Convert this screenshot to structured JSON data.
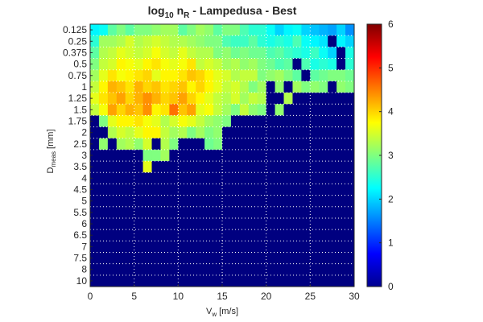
{
  "chart_data": {
    "type": "heatmap",
    "title": {
      "main": "log",
      "sub": "10",
      "mid": " n",
      "sub2": "R",
      "tail": " - Lampedusa - Best"
    },
    "xlabel": {
      "main": "V",
      "sub": "w",
      "tail": " [m/s]"
    },
    "ylabel": {
      "main": "D",
      "sub": "meas",
      "tail": " [mm]"
    },
    "x_ticks": [
      0,
      5,
      10,
      15,
      20,
      25,
      30
    ],
    "xlim": [
      0,
      30
    ],
    "y_tick_labels": [
      "0.125",
      "0.25",
      "0.375",
      "0.5",
      "0.75",
      "1",
      "1.25",
      "1.5",
      "1.75",
      "2",
      "2.5",
      "3",
      "3.5",
      "4",
      "4.5",
      "5",
      "5.5",
      "6",
      "6.5",
      "7",
      "7.5",
      "8",
      "10"
    ],
    "colorbar": {
      "min": 0,
      "max": 6,
      "ticks": [
        0,
        1,
        2,
        3,
        4,
        5,
        6
      ],
      "colormap": "jet"
    },
    "grid": true,
    "x_bin_width": 1,
    "z_rows": [
      [
        2.2,
        2.3,
        2.8,
        3.0,
        2.8,
        3.0,
        3.0,
        3.1,
        3.2,
        3.2,
        2.8,
        3.0,
        3.2,
        3.1,
        2.8,
        3.0,
        3.0,
        2.7,
        2.5,
        2.5,
        2.3,
        2.0,
        2.2,
        2.3,
        2.0,
        1.9,
        1.8,
        1.7,
        2.0,
        1.6
      ],
      [
        2.5,
        3.2,
        3.2,
        3.3,
        3.5,
        3.3,
        3.4,
        3.5,
        3.4,
        3.3,
        3.3,
        3.2,
        3.1,
        3.0,
        3.0,
        2.7,
        2.6,
        2.6,
        2.8,
        2.5,
        2.4,
        2.5,
        2.4,
        2.7,
        2.3,
        2.2,
        2.1,
        0,
        2.2,
        2.0
      ],
      [
        2.8,
        3.3,
        3.4,
        3.6,
        3.5,
        3.4,
        3.5,
        3.7,
        3.5,
        3.4,
        3.6,
        3.4,
        3.3,
        3.3,
        3.0,
        3.1,
        2.9,
        3.0,
        2.9,
        2.9,
        2.7,
        2.8,
        2.6,
        2.5,
        2.4,
        2.6,
        2.3,
        2.0,
        0,
        2.4
      ],
      [
        3.0,
        3.4,
        3.5,
        3.8,
        3.7,
        3.6,
        3.8,
        3.9,
        3.7,
        3.6,
        3.7,
        3.9,
        3.4,
        3.5,
        3.4,
        3.2,
        3.3,
        3.1,
        3.2,
        3.0,
        2.9,
        2.7,
        2.8,
        0,
        2.7,
        2.4,
        2.5,
        2.4,
        0,
        2.5
      ],
      [
        3.2,
        3.6,
        3.9,
        3.7,
        3.8,
        3.9,
        4.0,
        3.6,
        3.8,
        3.8,
        3.9,
        4.1,
        4.0,
        3.8,
        3.6,
        3.5,
        3.3,
        3.4,
        3.4,
        3.0,
        3.1,
        3.2,
        3.0,
        2.8,
        0,
        2.8,
        2.9,
        3.0,
        3.0,
        2.9
      ],
      [
        3.4,
        3.8,
        4.2,
        4.1,
        3.9,
        4.2,
        4.0,
        4.1,
        3.9,
        4.0,
        4.1,
        3.8,
        4.0,
        3.8,
        3.6,
        3.4,
        3.5,
        3.3,
        3.0,
        3.2,
        0,
        3.1,
        0,
        3.2,
        3.0,
        3.1,
        3.0,
        0,
        3.1,
        3.0
      ],
      [
        3.6,
        3.9,
        4.1,
        4.3,
        4.0,
        4.2,
        4.4,
        4.2,
        4.0,
        4.1,
        4.3,
        4.0,
        3.8,
        3.6,
        3.4,
        3.3,
        3.5,
        3.2,
        3.4,
        3.3,
        0,
        0,
        3.3,
        0,
        0,
        0,
        0,
        0,
        0,
        0
      ],
      [
        3.4,
        3.7,
        4.3,
        4.0,
        4.2,
        4.1,
        4.4,
        3.8,
        3.9,
        4.6,
        4.1,
        4.3,
        3.6,
        3.7,
        3.4,
        3.2,
        3.0,
        3.4,
        3.1,
        3.0,
        0,
        3.1,
        0,
        0,
        0,
        0,
        0,
        0,
        0,
        0
      ],
      [
        0,
        3.0,
        3.6,
        3.8,
        3.8,
        3.9,
        3.7,
        3.6,
        3.3,
        3.5,
        3.7,
        3.6,
        3.4,
        3.2,
        3.1,
        3.0,
        0,
        0,
        0,
        0,
        0,
        0,
        0,
        0,
        0,
        0,
        0,
        0,
        0,
        0
      ],
      [
        0,
        0,
        3.3,
        3.5,
        3.4,
        3.6,
        3.8,
        3.8,
        3.4,
        3.2,
        3.3,
        3.0,
        3.2,
        3.0,
        3.1,
        0,
        0,
        0,
        0,
        0,
        0,
        0,
        0,
        0,
        0,
        0,
        0,
        0,
        0,
        0
      ],
      [
        0,
        3.1,
        0,
        3.2,
        3.3,
        3.1,
        3.5,
        0,
        3.3,
        3.0,
        0,
        0,
        0,
        2.9,
        3.0,
        0,
        0,
        0,
        0,
        0,
        0,
        0,
        0,
        0,
        0,
        0,
        0,
        0,
        0,
        0
      ],
      [
        0,
        0,
        0,
        0,
        0,
        0,
        3.0,
        3.0,
        3.2,
        0,
        0,
        0,
        0,
        0,
        0,
        0,
        0,
        0,
        0,
        0,
        0,
        0,
        0,
        0,
        0,
        0,
        0,
        0,
        0,
        0
      ],
      [
        0,
        0,
        0,
        0,
        0,
        0,
        3.6,
        0,
        0,
        0,
        0,
        0,
        0,
        0,
        0,
        0,
        0,
        0,
        0,
        0,
        0,
        0,
        0,
        0,
        0,
        0,
        0,
        0,
        0,
        0
      ],
      [
        0,
        0,
        0,
        0,
        0,
        0,
        0,
        0,
        0,
        0,
        0,
        0,
        0,
        0,
        0,
        0,
        0,
        0,
        0,
        0,
        0,
        0,
        0,
        0,
        0,
        0,
        0,
        0,
        0,
        0
      ],
      [
        0,
        0,
        0,
        0,
        0,
        0,
        0,
        0,
        0,
        0,
        0,
        0,
        0,
        0,
        0,
        0,
        0,
        0,
        0,
        0,
        0,
        0,
        0,
        0,
        0,
        0,
        0,
        0,
        0,
        0
      ],
      [
        0,
        0,
        0,
        0,
        0,
        0,
        0,
        0,
        0,
        0,
        0,
        0,
        0,
        0,
        0,
        0,
        0,
        0,
        0,
        0,
        0,
        0,
        0,
        0,
        0,
        0,
        0,
        0,
        0,
        0
      ],
      [
        0,
        0,
        0,
        0,
        0,
        0,
        0,
        0,
        0,
        0,
        0,
        0,
        0,
        0,
        0,
        0,
        0,
        0,
        0,
        0,
        0,
        0,
        0,
        0,
        0,
        0,
        0,
        0,
        0,
        0
      ],
      [
        0,
        0,
        0,
        0,
        0,
        0,
        0,
        0,
        0,
        0,
        0,
        0,
        0,
        0,
        0,
        0,
        0,
        0,
        0,
        0,
        0,
        0,
        0,
        0,
        0,
        0,
        0,
        0,
        0,
        0
      ],
      [
        0,
        0,
        0,
        0,
        0,
        0,
        0,
        0,
        0,
        0,
        0,
        0,
        0,
        0,
        0,
        0,
        0,
        0,
        0,
        0,
        0,
        0,
        0,
        0,
        0,
        0,
        0,
        0,
        0,
        0
      ],
      [
        0,
        0,
        0,
        0,
        0,
        0,
        0,
        0,
        0,
        0,
        0,
        0,
        0,
        0,
        0,
        0,
        0,
        0,
        0,
        0,
        0,
        0,
        0,
        0,
        0,
        0,
        0,
        0,
        0,
        0
      ],
      [
        0,
        0,
        0,
        0,
        0,
        0,
        0,
        0,
        0,
        0,
        0,
        0,
        0,
        0,
        0,
        0,
        0,
        0,
        0,
        0,
        0,
        0,
        0,
        0,
        0,
        0,
        0,
        0,
        0,
        0
      ],
      [
        0,
        0,
        0,
        0,
        0,
        0,
        0,
        0,
        0,
        0,
        0,
        0,
        0,
        0,
        0,
        0,
        0,
        0,
        0,
        0,
        0,
        0,
        0,
        0,
        0,
        0,
        0,
        0,
        0,
        0
      ]
    ]
  }
}
